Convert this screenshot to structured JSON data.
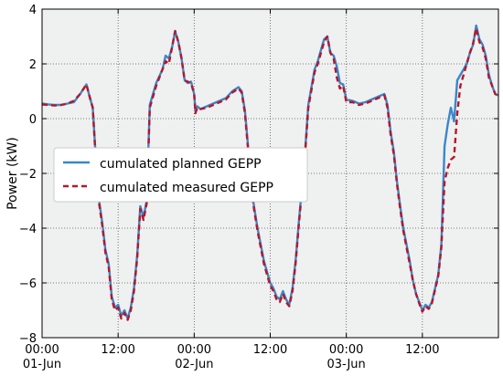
{
  "chart_data": {
    "type": "line",
    "title": "",
    "xlabel": "",
    "ylabel": "Power (kW)",
    "xlim": [
      0,
      72
    ],
    "ylim": [
      -8,
      4
    ],
    "grid": true,
    "legend_position": "center-left",
    "x_ticks": [
      {
        "x": 0,
        "label_line1": "00:00",
        "label_line2": "01-Jun"
      },
      {
        "x": 12,
        "label_line1": "12:00",
        "label_line2": ""
      },
      {
        "x": 24,
        "label_line1": "00:00",
        "label_line2": "02-Jun"
      },
      {
        "x": 36,
        "label_line1": "12:00",
        "label_line2": ""
      },
      {
        "x": 48,
        "label_line1": "00:00",
        "label_line2": "03-Jun"
      },
      {
        "x": 60,
        "label_line1": "12:00",
        "label_line2": ""
      }
    ],
    "y_ticks": [
      {
        "y": 4,
        "label": "4"
      },
      {
        "y": 2,
        "label": "2"
      },
      {
        "y": 0,
        "label": "0"
      },
      {
        "y": -2,
        "label": "−2"
      },
      {
        "y": -4,
        "label": "−4"
      },
      {
        "y": -6,
        "label": "−6"
      },
      {
        "y": -8,
        "label": "−8"
      }
    ],
    "series": [
      {
        "name": "cumulated planned GEPP",
        "color": "#3a87c8",
        "dash": "solid",
        "points": [
          [
            0,
            0.55
          ],
          [
            1,
            0.52
          ],
          [
            2,
            0.5
          ],
          [
            3,
            0.5
          ],
          [
            4,
            0.55
          ],
          [
            5,
            0.6
          ],
          [
            6,
            0.9
          ],
          [
            7,
            1.25
          ],
          [
            7.5,
            0.8
          ],
          [
            8,
            0.4
          ],
          [
            8.5,
            -1.5
          ],
          [
            9,
            -3
          ],
          [
            9.5,
            -3.8
          ],
          [
            10,
            -4.8
          ],
          [
            10.5,
            -5.3
          ],
          [
            11,
            -6.5
          ],
          [
            11.5,
            -6.9
          ],
          [
            12,
            -6.8
          ],
          [
            12.5,
            -7.2
          ],
          [
            13,
            -7.0
          ],
          [
            13.5,
            -7.3
          ],
          [
            14,
            -6.9
          ],
          [
            14.5,
            -6.2
          ],
          [
            15,
            -5.0
          ],
          [
            15.5,
            -3.2
          ],
          [
            16,
            -3.6
          ],
          [
            16.5,
            -3.0
          ],
          [
            17,
            0.5
          ],
          [
            18,
            1.3
          ],
          [
            19,
            1.8
          ],
          [
            19.5,
            2.3
          ],
          [
            20,
            2.2
          ],
          [
            20.5,
            2.6
          ],
          [
            21,
            3.2
          ],
          [
            21.5,
            2.8
          ],
          [
            22,
            2.2
          ],
          [
            22.5,
            1.4
          ],
          [
            23,
            1.3
          ],
          [
            23.5,
            1.35
          ],
          [
            24,
            0.9
          ],
          [
            24.2,
            0.3
          ],
          [
            24.5,
            0.45
          ],
          [
            25,
            0.35
          ],
          [
            26,
            0.45
          ],
          [
            27,
            0.55
          ],
          [
            28,
            0.65
          ],
          [
            29,
            0.75
          ],
          [
            30,
            1.0
          ],
          [
            31,
            1.15
          ],
          [
            31.5,
            1.0
          ],
          [
            32,
            0.3
          ],
          [
            32.5,
            -1.0
          ],
          [
            33,
            -2.5
          ],
          [
            33.5,
            -3.3
          ],
          [
            34,
            -4.0
          ],
          [
            34.5,
            -4.6
          ],
          [
            35,
            -5.2
          ],
          [
            35.5,
            -5.6
          ],
          [
            36,
            -6.0
          ],
          [
            36.5,
            -6.2
          ],
          [
            37,
            -6.5
          ],
          [
            37.5,
            -6.6
          ],
          [
            38,
            -6.3
          ],
          [
            38.5,
            -6.6
          ],
          [
            39,
            -6.8
          ],
          [
            39.5,
            -6.2
          ],
          [
            40,
            -5.2
          ],
          [
            40.5,
            -3.8
          ],
          [
            41,
            -2.5
          ],
          [
            41.5,
            -1.2
          ],
          [
            42,
            0.5
          ],
          [
            43,
            1.8
          ],
          [
            43.5,
            2.1
          ],
          [
            44,
            2.5
          ],
          [
            44.5,
            2.9
          ],
          [
            45,
            3.0
          ],
          [
            45.5,
            2.4
          ],
          [
            46,
            2.3
          ],
          [
            46.5,
            1.9
          ],
          [
            47,
            1.3
          ],
          [
            47.5,
            1.25
          ],
          [
            48,
            0.7
          ],
          [
            49,
            0.65
          ],
          [
            50,
            0.55
          ],
          [
            51,
            0.6
          ],
          [
            52,
            0.7
          ],
          [
            53,
            0.8
          ],
          [
            54,
            0.9
          ],
          [
            54.5,
            0.5
          ],
          [
            55,
            -0.5
          ],
          [
            55.5,
            -1.2
          ],
          [
            56,
            -2.3
          ],
          [
            56.5,
            -3.2
          ],
          [
            57,
            -4.0
          ],
          [
            57.5,
            -4.6
          ],
          [
            58,
            -5.2
          ],
          [
            58.5,
            -5.9
          ],
          [
            59,
            -6.4
          ],
          [
            59.5,
            -6.7
          ],
          [
            60,
            -7.0
          ],
          [
            60.5,
            -6.8
          ],
          [
            61,
            -6.9
          ],
          [
            61.5,
            -6.7
          ],
          [
            62,
            -6.2
          ],
          [
            62.5,
            -5.7
          ],
          [
            63,
            -4.6
          ],
          [
            63.5,
            -1.0
          ],
          [
            64,
            -0.2
          ],
          [
            64.5,
            0.4
          ],
          [
            65,
            -0.1
          ],
          [
            65.5,
            1.4
          ],
          [
            66,
            1.6
          ],
          [
            66.5,
            1.8
          ],
          [
            67,
            2.0
          ],
          [
            67.5,
            2.4
          ],
          [
            68,
            2.7
          ],
          [
            68.5,
            3.4
          ],
          [
            69,
            2.9
          ],
          [
            69.5,
            2.7
          ],
          [
            70,
            2.3
          ],
          [
            70.5,
            1.6
          ],
          [
            71,
            1.2
          ],
          [
            71.5,
            0.9
          ],
          [
            72,
            0.85
          ]
        ]
      },
      {
        "name": "cumulated measured GEPP",
        "color": "#b5172a",
        "dash": "dashed",
        "points": [
          [
            0,
            0.52
          ],
          [
            1,
            0.5
          ],
          [
            2,
            0.48
          ],
          [
            3,
            0.5
          ],
          [
            4,
            0.55
          ],
          [
            5,
            0.65
          ],
          [
            6,
            0.9
          ],
          [
            7,
            1.25
          ],
          [
            7.5,
            0.8
          ],
          [
            8,
            0.4
          ],
          [
            8.5,
            -1.6
          ],
          [
            9,
            -3.1
          ],
          [
            9.5,
            -3.9
          ],
          [
            10,
            -4.9
          ],
          [
            10.5,
            -5.4
          ],
          [
            11,
            -6.6
          ],
          [
            11.5,
            -7.0
          ],
          [
            12,
            -6.9
          ],
          [
            12.5,
            -7.3
          ],
          [
            13,
            -7.1
          ],
          [
            13.5,
            -7.35
          ],
          [
            14,
            -7.0
          ],
          [
            14.5,
            -6.3
          ],
          [
            15,
            -5.1
          ],
          [
            15.5,
            -3.3
          ],
          [
            16,
            -3.7
          ],
          [
            16.5,
            -3.1
          ],
          [
            17,
            0.4
          ],
          [
            18,
            1.2
          ],
          [
            19,
            1.8
          ],
          [
            19.5,
            2.1
          ],
          [
            20,
            2.0
          ],
          [
            20.5,
            2.6
          ],
          [
            21,
            3.2
          ],
          [
            21.5,
            2.8
          ],
          [
            22,
            2.2
          ],
          [
            22.5,
            1.4
          ],
          [
            23,
            1.35
          ],
          [
            23.5,
            1.3
          ],
          [
            24,
            0.9
          ],
          [
            24.2,
            0.2
          ],
          [
            24.5,
            0.4
          ],
          [
            25,
            0.35
          ],
          [
            26,
            0.4
          ],
          [
            27,
            0.5
          ],
          [
            28,
            0.6
          ],
          [
            29,
            0.7
          ],
          [
            30,
            0.95
          ],
          [
            31,
            1.1
          ],
          [
            31.5,
            0.95
          ],
          [
            32,
            0.2
          ],
          [
            32.5,
            -1.1
          ],
          [
            33,
            -2.6
          ],
          [
            33.5,
            -3.4
          ],
          [
            34,
            -4.1
          ],
          [
            34.5,
            -4.7
          ],
          [
            35,
            -5.3
          ],
          [
            35.5,
            -5.7
          ],
          [
            36,
            -6.1
          ],
          [
            36.5,
            -6.3
          ],
          [
            37,
            -6.6
          ],
          [
            37.5,
            -6.7
          ],
          [
            38,
            -6.4
          ],
          [
            38.5,
            -6.7
          ],
          [
            39,
            -6.85
          ],
          [
            39.5,
            -6.3
          ],
          [
            40,
            -5.3
          ],
          [
            40.5,
            -3.9
          ],
          [
            41,
            -2.6
          ],
          [
            41.5,
            -1.3
          ],
          [
            42,
            0.4
          ],
          [
            43,
            1.7
          ],
          [
            43.5,
            2.0
          ],
          [
            44,
            2.4
          ],
          [
            44.5,
            2.8
          ],
          [
            45,
            3.0
          ],
          [
            45.5,
            2.4
          ],
          [
            46,
            2.2
          ],
          [
            46.5,
            1.5
          ],
          [
            47,
            1.1
          ],
          [
            47.5,
            1.2
          ],
          [
            48,
            0.6
          ],
          [
            49,
            0.6
          ],
          [
            50,
            0.5
          ],
          [
            51,
            0.55
          ],
          [
            52,
            0.65
          ],
          [
            53,
            0.75
          ],
          [
            54,
            0.85
          ],
          [
            54.5,
            0.4
          ],
          [
            55,
            -0.6
          ],
          [
            55.5,
            -1.3
          ],
          [
            56,
            -2.4
          ],
          [
            56.5,
            -3.3
          ],
          [
            57,
            -4.1
          ],
          [
            57.5,
            -4.7
          ],
          [
            58,
            -5.3
          ],
          [
            58.5,
            -5.9
          ],
          [
            59,
            -6.4
          ],
          [
            59.5,
            -6.75
          ],
          [
            60,
            -7.05
          ],
          [
            60.5,
            -6.85
          ],
          [
            61,
            -6.95
          ],
          [
            61.5,
            -6.75
          ],
          [
            62,
            -6.25
          ],
          [
            62.5,
            -5.75
          ],
          [
            63,
            -4.7
          ],
          [
            63.5,
            -2.3
          ],
          [
            64,
            -1.8
          ],
          [
            64.5,
            -1.5
          ],
          [
            65,
            -1.4
          ],
          [
            65.5,
            0.2
          ],
          [
            66,
            1.2
          ],
          [
            66.5,
            1.6
          ],
          [
            67,
            2.0
          ],
          [
            67.5,
            2.4
          ],
          [
            68,
            2.75
          ],
          [
            68.5,
            3.3
          ],
          [
            69,
            2.8
          ],
          [
            69.5,
            2.6
          ],
          [
            70,
            2.2
          ],
          [
            70.5,
            1.5
          ],
          [
            71,
            1.2
          ],
          [
            71.5,
            0.9
          ],
          [
            72,
            0.85
          ]
        ]
      }
    ]
  }
}
